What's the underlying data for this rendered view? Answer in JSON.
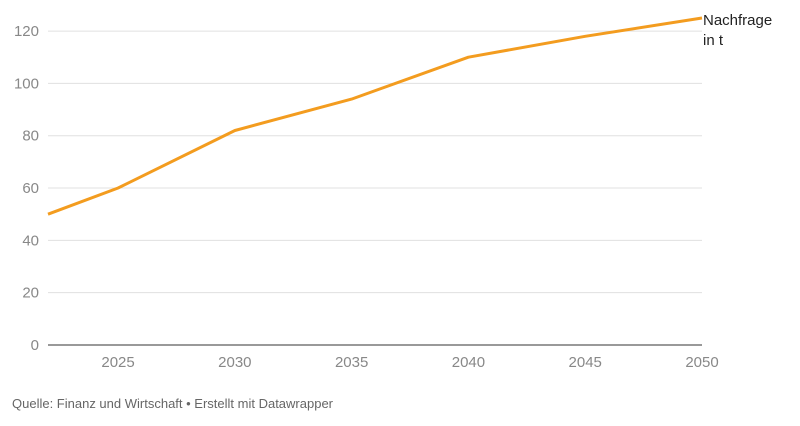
{
  "chart_data": {
    "type": "line",
    "title": "",
    "xlabel": "",
    "ylabel": "",
    "x": [
      2022,
      2025,
      2030,
      2035,
      2040,
      2045,
      2050
    ],
    "series": [
      {
        "name": "Nachfrage in t",
        "label_lines": [
          "Nachfrage",
          "in t"
        ],
        "values": [
          50,
          60,
          82,
          94,
          110,
          118,
          125
        ]
      }
    ],
    "xticks": [
      2025,
      2030,
      2035,
      2040,
      2045,
      2050
    ],
    "yticks": [
      0,
      20,
      40,
      60,
      80,
      100,
      120
    ],
    "xlim": [
      2022,
      2050
    ],
    "ylim": [
      0,
      125
    ],
    "grid": true,
    "colors": {
      "line": "#f39c1f",
      "grid": "#e0e0e0",
      "axis": "#333333"
    }
  },
  "footer": {
    "source": "Quelle: Finanz und Wirtschaft • Erstellt mit Datawrapper"
  }
}
